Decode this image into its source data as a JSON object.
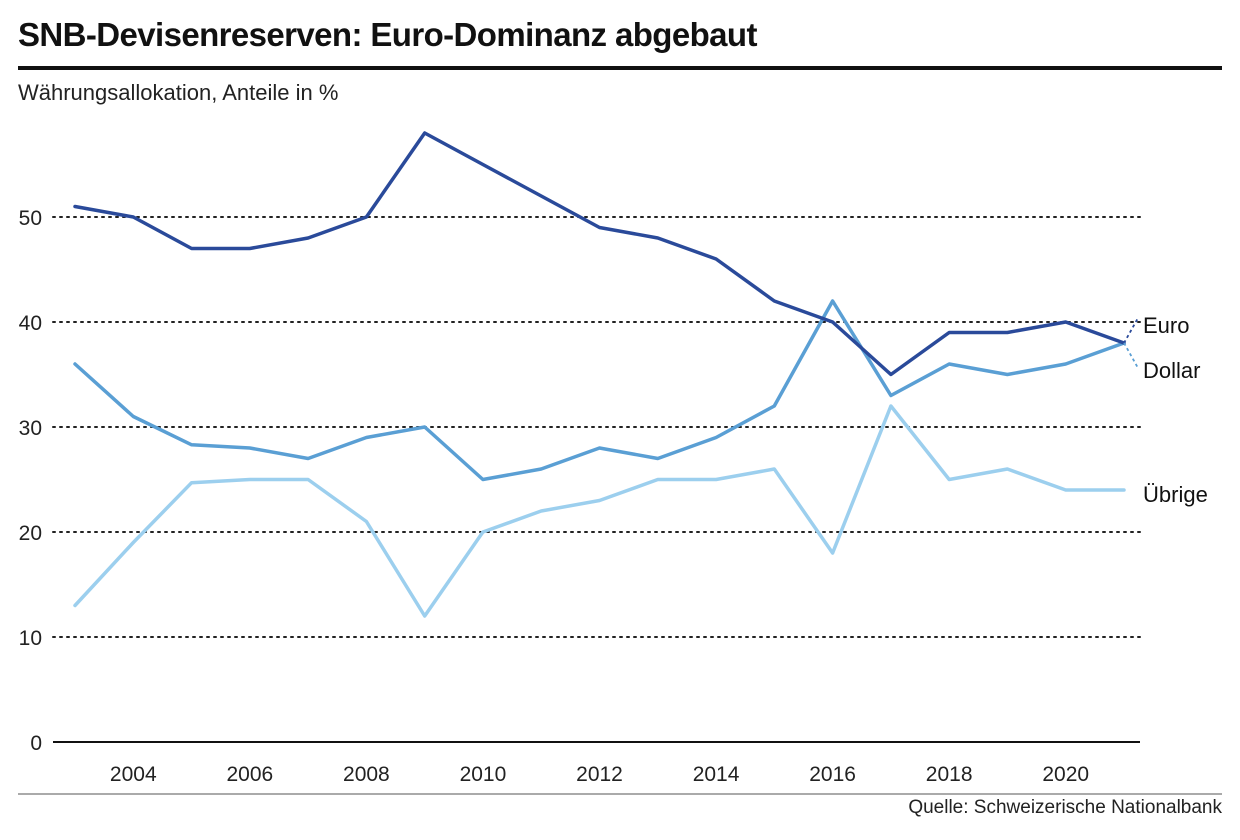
{
  "chart_data": {
    "type": "line",
    "title": "SNB-Devisenreserven: Euro-Dominanz abgebaut",
    "subtitle": "Währungsallokation, Anteile in %",
    "source": "Quelle: Schweizerische Nationalbank",
    "xlabel": "",
    "ylabel": "",
    "x": [
      2003,
      2004,
      2005,
      2006,
      2007,
      2008,
      2009,
      2010,
      2011,
      2012,
      2013,
      2014,
      2015,
      2016,
      2017,
      2018,
      2019,
      2020,
      2021
    ],
    "x_ticks": [
      "2004",
      "2006",
      "2008",
      "2010",
      "2012",
      "2014",
      "2016",
      "2018",
      "2020"
    ],
    "x_tick_values": [
      2004,
      2006,
      2008,
      2010,
      2012,
      2014,
      2016,
      2018,
      2020
    ],
    "y_ticks": [
      "0",
      "10",
      "20",
      "30",
      "40",
      "50"
    ],
    "y_tick_values": [
      0,
      10,
      20,
      30,
      40,
      50
    ],
    "xlim": [
      2003,
      2021
    ],
    "ylim": [
      0,
      58
    ],
    "grid": "horizontal dotted",
    "legend": "direct labels at line ends (right)",
    "series": [
      {
        "name": "Euro",
        "color": "#2a4a9a",
        "values": [
          51,
          50,
          47,
          47,
          48,
          50,
          58,
          55,
          52,
          49,
          48,
          46,
          42,
          40,
          35,
          39,
          39,
          40,
          38
        ]
      },
      {
        "name": "Dollar",
        "color": "#5a9fd4",
        "values": [
          36,
          31,
          28.3,
          28,
          27,
          29,
          30,
          25,
          26,
          28,
          27,
          29,
          32,
          42,
          33,
          36,
          35,
          36,
          38
        ]
      },
      {
        "name": "Übrige",
        "color": "#9ccfee",
        "values": [
          13,
          19,
          24.7,
          25,
          25,
          21,
          12,
          20,
          22,
          23,
          25,
          25,
          26,
          18,
          32,
          25,
          26,
          24,
          24
        ]
      }
    ]
  }
}
